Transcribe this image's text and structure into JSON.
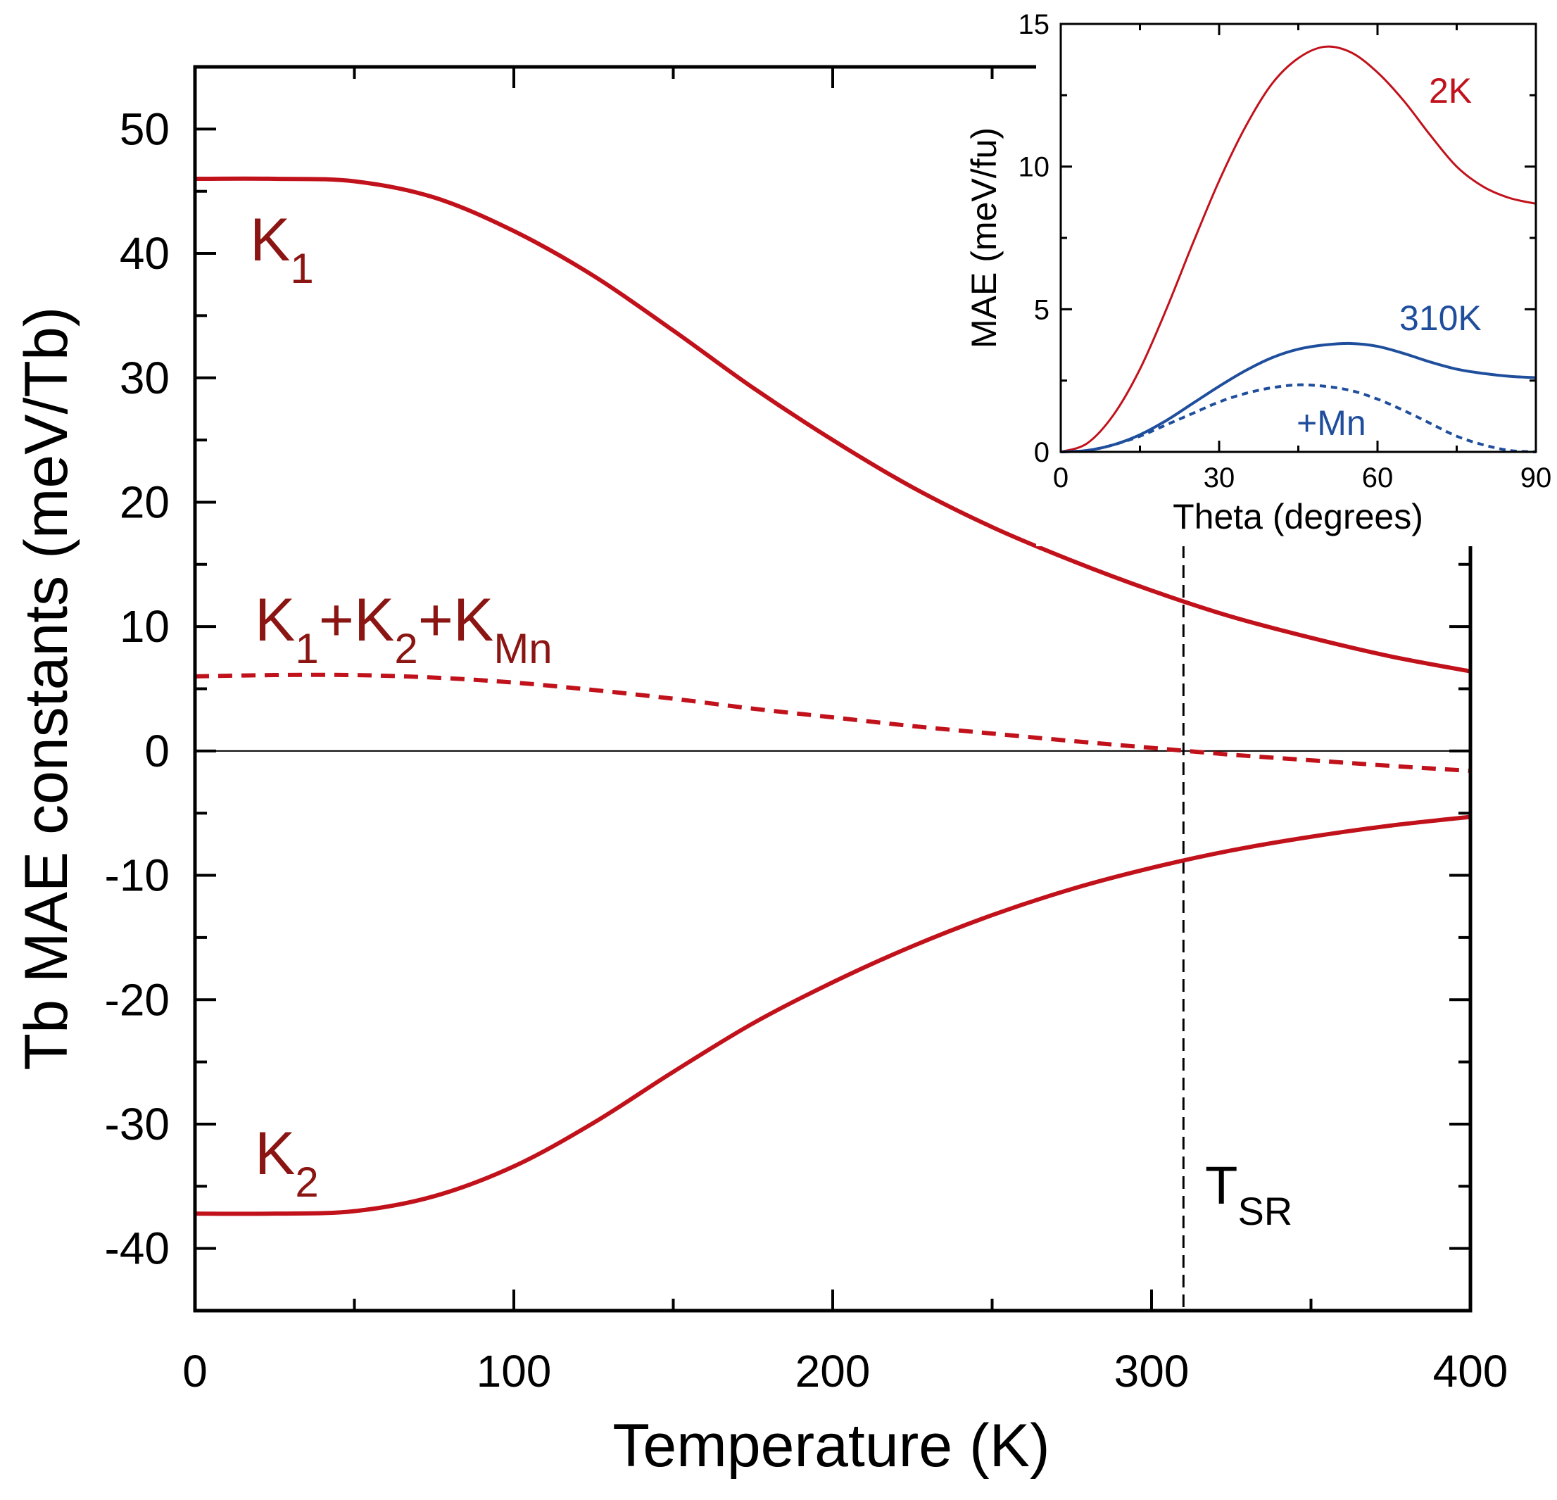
{
  "colors": {
    "red": "#c1121c",
    "dark_red": "#8b1512",
    "blue": "#1f4e9c",
    "axis": "#000000"
  },
  "chart_data": [
    {
      "type": "line",
      "title": "",
      "xlabel": "Temperature (K)",
      "ylabel": "Tb MAE constants (meV/Tb)",
      "xlim": [
        0,
        400
      ],
      "ylim": [
        -45,
        55
      ],
      "xticks": [
        0,
        100,
        200,
        300,
        400
      ],
      "xtick_labels": [
        "0",
        "100",
        "200",
        "300",
        "400"
      ],
      "yticks": [
        -40,
        -30,
        -20,
        -10,
        0,
        10,
        20,
        30,
        40,
        50
      ],
      "ytick_labels": [
        "-40",
        "-30",
        "-20",
        "-10",
        "0",
        "10",
        "20",
        "30",
        "40",
        "50"
      ],
      "series": [
        {
          "name": "K1",
          "style": "solid",
          "x": [
            0,
            25,
            50,
            75,
            100,
            125,
            150,
            175,
            200,
            225,
            250,
            275,
            300,
            325,
            350,
            375,
            400
          ],
          "y": [
            46.0,
            46.0,
            45.8,
            44.5,
            41.8,
            38.2,
            33.8,
            29.2,
            25.0,
            21.2,
            18.0,
            15.3,
            12.9,
            10.8,
            9.1,
            7.6,
            6.4
          ]
        },
        {
          "name": "K1+K2+KMn",
          "style": "dashed",
          "x": [
            0,
            25,
            50,
            75,
            100,
            125,
            150,
            175,
            200,
            225,
            250,
            275,
            300,
            325,
            350,
            375,
            400
          ],
          "y": [
            6.0,
            6.1,
            6.1,
            5.9,
            5.5,
            4.9,
            4.2,
            3.4,
            2.7,
            2.0,
            1.4,
            0.8,
            0.25,
            -0.3,
            -0.75,
            -1.2,
            -1.6
          ]
        },
        {
          "name": "K2",
          "style": "solid",
          "x": [
            0,
            25,
            50,
            75,
            100,
            125,
            150,
            175,
            200,
            225,
            250,
            275,
            300,
            325,
            350,
            375,
            400
          ],
          "y": [
            -37.2,
            -37.2,
            -37.0,
            -35.8,
            -33.4,
            -29.9,
            -25.8,
            -21.9,
            -18.6,
            -15.7,
            -13.2,
            -11.1,
            -9.4,
            -8.0,
            -6.9,
            -6.0,
            -5.3
          ]
        }
      ],
      "reference_lines": [
        {
          "type": "horizontal",
          "y": 0
        },
        {
          "type": "vertical",
          "x": 310,
          "style": "dashed"
        }
      ],
      "annotations": {
        "k1": {
          "main": "K",
          "sub": "1"
        },
        "k2": {
          "main": "K",
          "sub": "2"
        },
        "sum": {
          "p1": "K",
          "s1": "1",
          "p2": "+K",
          "s2": "2",
          "p3": "+K",
          "s3": "Mn"
        },
        "tsr": {
          "main": "T",
          "sub": "SR"
        }
      }
    },
    {
      "type": "line",
      "title": "",
      "xlabel": "Theta (degrees)",
      "ylabel": "MAE (meV/fu)",
      "xlim": [
        0,
        90
      ],
      "ylim": [
        0,
        15
      ],
      "xticks": [
        0,
        30,
        60,
        90
      ],
      "xtick_labels": [
        "0",
        "30",
        "60",
        "90"
      ],
      "yticks": [
        0,
        5,
        10,
        15
      ],
      "ytick_labels": [
        "0",
        "5",
        "10",
        "15"
      ],
      "series": [
        {
          "name": "2K",
          "style": "solid",
          "x": [
            0,
            5,
            10,
            15,
            20,
            25,
            30,
            35,
            40,
            45,
            50,
            55,
            60,
            65,
            70,
            75,
            80,
            85,
            90
          ],
          "y": [
            0,
            0.3,
            1.3,
            2.9,
            5.0,
            7.3,
            9.5,
            11.4,
            12.9,
            13.8,
            14.2,
            14.0,
            13.3,
            12.3,
            11.1,
            10.0,
            9.3,
            8.9,
            8.7
          ]
        },
        {
          "name": "310K",
          "style": "solid",
          "x": [
            0,
            5,
            10,
            15,
            20,
            25,
            30,
            35,
            40,
            45,
            50,
            55,
            60,
            65,
            70,
            75,
            80,
            85,
            90
          ],
          "y": [
            0,
            0.05,
            0.25,
            0.6,
            1.1,
            1.7,
            2.3,
            2.85,
            3.3,
            3.6,
            3.75,
            3.8,
            3.7,
            3.45,
            3.15,
            2.9,
            2.75,
            2.65,
            2.6
          ]
        },
        {
          "name": "+Mn",
          "style": "dashed",
          "x": [
            0,
            5,
            10,
            15,
            20,
            25,
            30,
            35,
            40,
            45,
            50,
            55,
            60,
            65,
            70,
            75,
            80,
            85,
            90
          ],
          "y": [
            0,
            0.05,
            0.25,
            0.55,
            0.95,
            1.35,
            1.75,
            2.05,
            2.25,
            2.35,
            2.3,
            2.15,
            1.85,
            1.45,
            1.0,
            0.55,
            0.25,
            0.05,
            0
          ]
        }
      ],
      "labels": [
        "2K",
        "310K",
        "+Mn"
      ]
    }
  ]
}
